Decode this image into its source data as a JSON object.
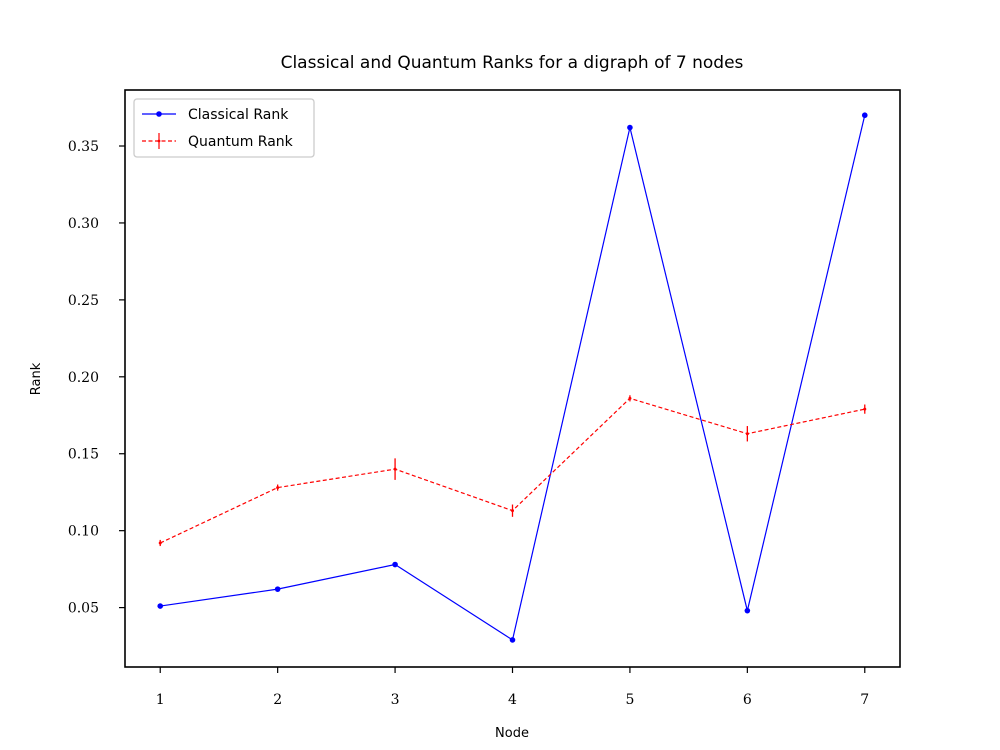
{
  "chart_data": {
    "type": "line",
    "title": "Classical and Quantum Ranks for a digraph of 7 nodes",
    "xlabel": "Node",
    "ylabel": "Rank",
    "x": [
      1,
      2,
      3,
      4,
      5,
      6,
      7
    ],
    "xlim": [
      0.7,
      7.3
    ],
    "ylim": [
      0.0114,
      0.3864
    ],
    "xticks": [
      "1",
      "2",
      "3",
      "4",
      "5",
      "6",
      "7"
    ],
    "yticks": [
      {
        "value": 0.05,
        "label": "0.05"
      },
      {
        "value": 0.1,
        "label": "0.10"
      },
      {
        "value": 0.15,
        "label": "0.15"
      },
      {
        "value": 0.2,
        "label": "0.20"
      },
      {
        "value": 0.25,
        "label": "0.25"
      },
      {
        "value": 0.3,
        "label": "0.30"
      },
      {
        "value": 0.35,
        "label": "0.35"
      }
    ],
    "grid": false,
    "legend_position": "top-left",
    "series": [
      {
        "name": "Classical Rank",
        "color": "#0000ff",
        "line_style": "solid",
        "marker": "dot",
        "values": [
          0.051,
          0.062,
          0.078,
          0.029,
          0.362,
          0.048,
          0.37
        ]
      },
      {
        "name": "Quantum Rank",
        "color": "#ff0000",
        "line_style": "dashed",
        "marker": "errorbar",
        "values": [
          0.092,
          0.128,
          0.14,
          0.113,
          0.186,
          0.163,
          0.179
        ],
        "errors": [
          0.002,
          0.002,
          0.007,
          0.004,
          0.002,
          0.005,
          0.003
        ]
      }
    ]
  }
}
